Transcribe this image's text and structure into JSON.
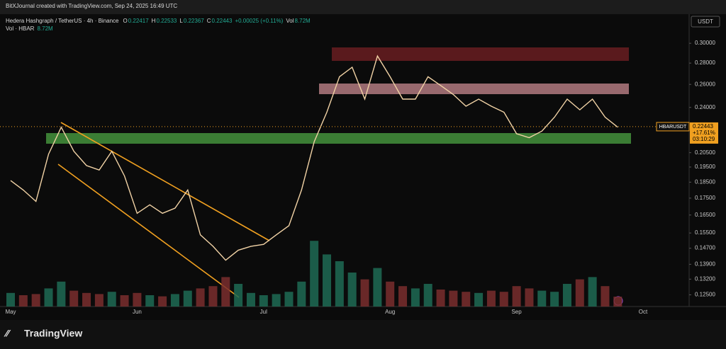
{
  "header": {
    "credit": "BitXJournal created with TradingView.com, Sep 24, 2025 16:49 UTC",
    "brand": "TradingView"
  },
  "chart_data": {
    "type": "line",
    "symbol_title": "Hedera Hashgraph / TetherUS · 4h · Binance",
    "ohlc_labels": [
      "O",
      "H",
      "L",
      "C"
    ],
    "ohlc_values": [
      0.22417,
      0.22533,
      0.22367,
      0.22443
    ],
    "change": "+0.00025 (+0.11%)",
    "vol_label": "Vol",
    "vol_value": "8.72M",
    "vol_title": "Vol · HBAR",
    "currency": "USDT",
    "price_label": {
      "symbol": "HBARUSDT",
      "last_price": 0.22443,
      "change": "+17.61%",
      "countdown": "03:10:29"
    },
    "categories": [
      "May",
      null,
      null,
      null,
      null,
      null,
      null,
      null,
      null,
      null,
      "Jun",
      null,
      null,
      null,
      null,
      null,
      null,
      null,
      null,
      null,
      "Jul",
      null,
      null,
      null,
      null,
      null,
      null,
      null,
      null,
      null,
      "Aug",
      null,
      null,
      null,
      null,
      null,
      null,
      null,
      null,
      null,
      "Sep",
      null,
      null,
      null,
      null,
      null,
      null,
      null,
      null,
      null,
      "Oct"
    ],
    "series": [
      {
        "name": "HBARUSDT",
        "color": "#f2d3a6",
        "values": [
          0.186,
          0.18,
          0.173,
          0.204,
          0.224,
          0.206,
          0.196,
          0.193,
          0.206,
          0.189,
          0.166,
          0.171,
          0.166,
          0.169,
          0.18,
          0.154,
          0.148,
          0.141,
          0.146,
          0.148,
          0.149,
          0.154,
          0.159,
          0.18,
          0.213,
          0.236,
          0.267,
          0.276,
          0.247,
          0.287,
          0.267,
          0.247,
          0.247,
          0.267,
          0.259,
          0.251,
          0.241,
          0.247,
          0.241,
          0.236,
          0.219,
          0.216,
          0.221,
          0.232,
          0.247,
          0.238,
          0.247,
          0.232,
          0.224,
          null,
          null
        ]
      }
    ],
    "volume": [
      12,
      10,
      11,
      16,
      22,
      14,
      12,
      11,
      13,
      10,
      12,
      10,
      9,
      11,
      14,
      16,
      18,
      26,
      20,
      12,
      10,
      11,
      13,
      22,
      58,
      46,
      40,
      30,
      24,
      34,
      22,
      18,
      16,
      20,
      15,
      14,
      13,
      12,
      14,
      13,
      18,
      16,
      14,
      13,
      20,
      24,
      26,
      18,
      8.72,
      null,
      null
    ],
    "volume_up_color": "#1f6b55",
    "volume_down_color": "#7a2e2e",
    "log_scale": true,
    "ylim": [
      0.12,
      0.332
    ],
    "yticks": [
      {
        "value": 0.3,
        "label": "0.30000"
      },
      {
        "value": 0.28,
        "label": "0.28000"
      },
      {
        "value": 0.26,
        "label": "0.26000"
      },
      {
        "value": 0.24,
        "label": "0.24000"
      },
      {
        "value": 0.205,
        "label": "0.20500"
      },
      {
        "value": 0.195,
        "label": "0.19500"
      },
      {
        "value": 0.185,
        "label": "0.18500"
      },
      {
        "value": 0.175,
        "label": "0.17500"
      },
      {
        "value": 0.165,
        "label": "0.16500"
      },
      {
        "value": 0.155,
        "label": "0.15500"
      },
      {
        "value": 0.147,
        "label": "0.14700"
      },
      {
        "value": 0.139,
        "label": "0.13900"
      },
      {
        "value": 0.132,
        "label": "0.13200"
      },
      {
        "value": 0.125,
        "label": "0.12500"
      }
    ]
  }
}
